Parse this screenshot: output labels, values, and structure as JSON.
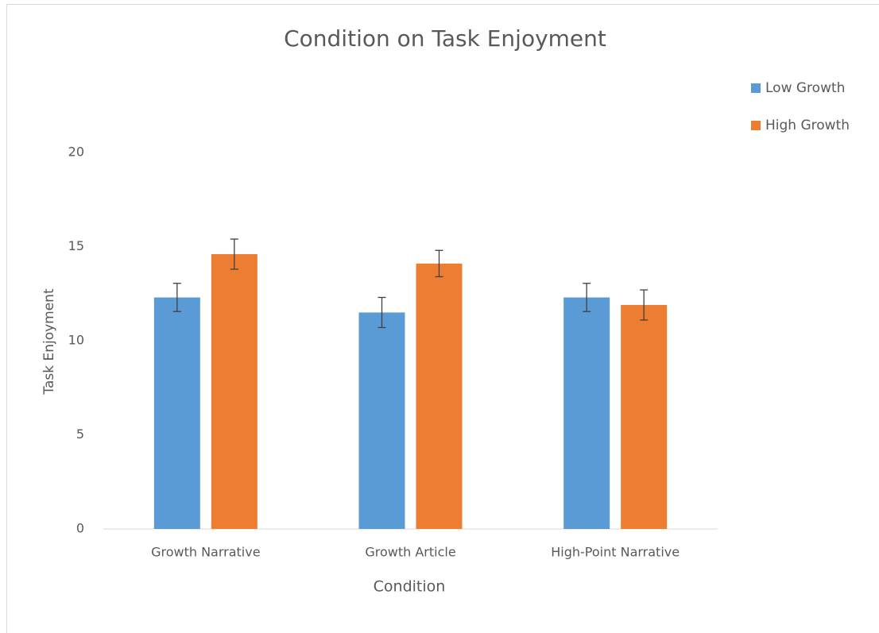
{
  "chart_data": {
    "type": "bar",
    "title": "Condition on Task Enjoyment",
    "xlabel": "Condition",
    "ylabel": "Task Enjoyment",
    "categories": [
      "Growth Narrative",
      "Growth Article",
      "High-Point Narrative"
    ],
    "series": [
      {
        "name": "Low Growth",
        "color": "#5b9bd5",
        "values": [
          12.3,
          11.5,
          12.3
        ],
        "errors": [
          0.75,
          0.8,
          0.75
        ]
      },
      {
        "name": "High Growth",
        "color": "#ed7d31",
        "values": [
          14.6,
          14.1,
          11.9
        ],
        "errors": [
          0.8,
          0.7,
          0.8
        ]
      }
    ],
    "ylim": [
      0,
      20
    ],
    "yticks": [
      0,
      5,
      10,
      15,
      20
    ],
    "grid": false,
    "legend": "right"
  }
}
